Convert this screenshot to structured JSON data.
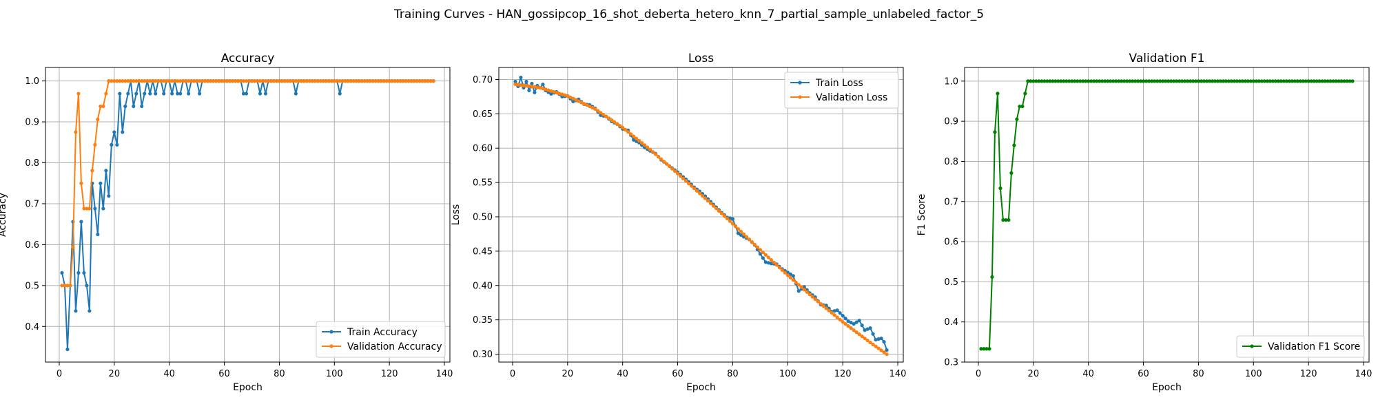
{
  "figure": {
    "suptitle": "Training Curves - HAN_gossipcop_16_shot_deberta_hetero_knn_7_partial_sample_unlabeled_factor_5"
  },
  "colors": {
    "train": "#1f77b4",
    "val": "#ff7f0e",
    "f1": "#008000",
    "grid": "#b0b0b0"
  },
  "chart_data": [
    {
      "type": "line",
      "title": "Accuracy",
      "xlabel": "Epoch",
      "ylabel": "Accuracy",
      "xlim": [
        -5,
        142
      ],
      "ylim": [
        0.313,
        1.033
      ],
      "xticks": [
        0,
        20,
        40,
        60,
        80,
        100,
        120,
        140
      ],
      "yticks": [
        0.4,
        0.5,
        0.6,
        0.7,
        0.8,
        0.9,
        1.0
      ],
      "grid": true,
      "legend": "lower-right",
      "series": [
        {
          "name": "Train Accuracy",
          "color": "#1f77b4",
          "points": [
            [
              1,
              0.531
            ],
            [
              2,
              0.5
            ],
            [
              3,
              0.344
            ],
            [
              4,
              0.5
            ],
            [
              5,
              0.656
            ],
            [
              6,
              0.438
            ],
            [
              7,
              0.531
            ],
            [
              8,
              0.656
            ],
            [
              9,
              0.531
            ],
            [
              10,
              0.5
            ],
            [
              11,
              0.438
            ],
            [
              12,
              0.75
            ],
            [
              13,
              0.688
            ],
            [
              14,
              0.625
            ],
            [
              15,
              0.75
            ],
            [
              16,
              0.688
            ],
            [
              17,
              0.781
            ],
            [
              18,
              0.719
            ],
            [
              19,
              0.844
            ],
            [
              20,
              0.875
            ],
            [
              21,
              0.844
            ],
            [
              22,
              0.969
            ],
            [
              23,
              0.875
            ],
            [
              24,
              0.938
            ],
            [
              25,
              0.969
            ],
            [
              26,
              1.0
            ],
            [
              27,
              0.938
            ],
            [
              28,
              0.969
            ],
            [
              29,
              1.0
            ],
            [
              30,
              0.938
            ],
            [
              31,
              0.969
            ],
            [
              32,
              1.0
            ],
            [
              33,
              0.969
            ],
            [
              34,
              1.0
            ],
            [
              35,
              0.969
            ],
            [
              36,
              1.0
            ],
            [
              37,
              1.0
            ],
            [
              38,
              0.969
            ],
            [
              39,
              1.0
            ],
            [
              40,
              1.0
            ],
            [
              41,
              0.969
            ],
            [
              42,
              1.0
            ],
            [
              43,
              0.969
            ],
            [
              44,
              0.969
            ],
            [
              45,
              1.0
            ],
            [
              46,
              1.0
            ],
            [
              47,
              0.969
            ],
            [
              48,
              1.0
            ],
            [
              49,
              1.0
            ],
            [
              50,
              1.0
            ],
            [
              51,
              0.969
            ],
            [
              52,
              1.0
            ],
            [
              60,
              1.0
            ],
            [
              66,
              1.0
            ],
            [
              67,
              0.969
            ],
            [
              68,
              0.969
            ],
            [
              69,
              1.0
            ],
            [
              72,
              1.0
            ],
            [
              73,
              0.969
            ],
            [
              74,
              1.0
            ],
            [
              75,
              0.969
            ],
            [
              76,
              1.0
            ],
            [
              85,
              1.0
            ],
            [
              86,
              0.969
            ],
            [
              87,
              1.0
            ],
            [
              101,
              1.0
            ],
            [
              102,
              0.969
            ],
            [
              103,
              1.0
            ],
            [
              136,
              1.0
            ]
          ]
        },
        {
          "name": "Validation Accuracy",
          "color": "#ff7f0e",
          "points": [
            [
              1,
              0.5
            ],
            [
              2,
              0.5
            ],
            [
              3,
              0.5
            ],
            [
              4,
              0.5
            ],
            [
              5,
              0.594
            ],
            [
              6,
              0.875
            ],
            [
              7,
              0.969
            ],
            [
              8,
              0.75
            ],
            [
              9,
              0.688
            ],
            [
              10,
              0.688
            ],
            [
              11,
              0.688
            ],
            [
              12,
              0.781
            ],
            [
              13,
              0.844
            ],
            [
              14,
              0.906
            ],
            [
              15,
              0.938
            ],
            [
              16,
              0.938
            ],
            [
              17,
              0.969
            ],
            [
              18,
              1.0
            ],
            [
              19,
              1.0
            ],
            [
              136,
              1.0
            ]
          ]
        }
      ]
    },
    {
      "type": "line",
      "title": "Loss",
      "xlabel": "Epoch",
      "ylabel": "Loss",
      "xlim": [
        -5,
        142
      ],
      "ylim": [
        0.2885,
        0.7175
      ],
      "xticks": [
        0,
        20,
        40,
        60,
        80,
        100,
        120,
        140
      ],
      "yticks": [
        0.3,
        0.35,
        0.4,
        0.45,
        0.5,
        0.55,
        0.6,
        0.65,
        0.7
      ],
      "grid": true,
      "legend": "top-right",
      "series": [
        {
          "name": "Train Loss",
          "color": "#1f77b4",
          "points": [
            [
              1,
              0.697
            ],
            [
              2,
              0.69
            ],
            [
              3,
              0.703
            ],
            [
              4,
              0.688
            ],
            [
              5,
              0.697
            ],
            [
              6,
              0.684
            ],
            [
              7,
              0.694
            ],
            [
              8,
              0.681
            ],
            [
              9,
              0.691
            ],
            [
              10,
              0.688
            ],
            [
              11,
              0.693
            ],
            [
              12,
              0.684
            ],
            [
              14,
              0.679
            ],
            [
              16,
              0.682
            ],
            [
              18,
              0.675
            ],
            [
              20,
              0.676
            ],
            [
              22,
              0.668
            ],
            [
              24,
              0.671
            ],
            [
              26,
              0.664
            ],
            [
              28,
              0.663
            ],
            [
              30,
              0.658
            ],
            [
              32,
              0.648
            ],
            [
              34,
              0.646
            ],
            [
              36,
              0.639
            ],
            [
              38,
              0.635
            ],
            [
              40,
              0.628
            ],
            [
              42,
              0.626
            ],
            [
              44,
              0.612
            ],
            [
              46,
              0.608
            ],
            [
              48,
              0.601
            ],
            [
              50,
              0.596
            ],
            [
              52,
              0.592
            ],
            [
              54,
              0.583
            ],
            [
              56,
              0.577
            ],
            [
              58,
              0.571
            ],
            [
              60,
              0.565
            ],
            [
              62,
              0.558
            ],
            [
              64,
              0.551
            ],
            [
              66,
              0.543
            ],
            [
              68,
              0.537
            ],
            [
              70,
              0.53
            ],
            [
              72,
              0.522
            ],
            [
              74,
              0.514
            ],
            [
              76,
              0.506
            ],
            [
              78,
              0.499
            ],
            [
              80,
              0.497
            ],
            [
              82,
              0.476
            ],
            [
              84,
              0.471
            ],
            [
              86,
              0.467
            ],
            [
              88,
              0.459
            ],
            [
              90,
              0.446
            ],
            [
              92,
              0.434
            ],
            [
              94,
              0.432
            ],
            [
              96,
              0.431
            ],
            [
              98,
              0.424
            ],
            [
              100,
              0.419
            ],
            [
              102,
              0.414
            ],
            [
              104,
              0.392
            ],
            [
              106,
              0.398
            ],
            [
              108,
              0.389
            ],
            [
              110,
              0.383
            ],
            [
              112,
              0.372
            ],
            [
              114,
              0.371
            ],
            [
              116,
              0.362
            ],
            [
              118,
              0.364
            ],
            [
              120,
              0.356
            ],
            [
              122,
              0.348
            ],
            [
              124,
              0.344
            ],
            [
              126,
              0.349
            ],
            [
              128,
              0.335
            ],
            [
              130,
              0.338
            ],
            [
              132,
              0.321
            ],
            [
              134,
              0.323
            ],
            [
              135,
              0.318
            ],
            [
              136,
              0.306
            ]
          ]
        },
        {
          "name": "Validation Loss",
          "color": "#ff7f0e",
          "points": [
            [
              1,
              0.693
            ],
            [
              10,
              0.688
            ],
            [
              20,
              0.676
            ],
            [
              30,
              0.657
            ],
            [
              40,
              0.63
            ],
            [
              50,
              0.598
            ],
            [
              60,
              0.563
            ],
            [
              70,
              0.527
            ],
            [
              80,
              0.49
            ],
            [
              90,
              0.452
            ],
            [
              100,
              0.415
            ],
            [
              110,
              0.38
            ],
            [
              120,
              0.347
            ],
            [
              130,
              0.317
            ],
            [
              136,
              0.3
            ]
          ]
        }
      ]
    },
    {
      "type": "line",
      "title": "Validation F1",
      "xlabel": "Epoch",
      "ylabel": "F1 Score",
      "xlim": [
        -5,
        142
      ],
      "ylim": [
        0.3,
        1.034
      ],
      "xticks": [
        0,
        20,
        40,
        60,
        80,
        100,
        120,
        140
      ],
      "yticks": [
        0.3,
        0.4,
        0.5,
        0.6,
        0.7,
        0.8,
        0.9,
        1.0
      ],
      "grid": true,
      "legend": "lower-right",
      "series": [
        {
          "name": "Validation F1 Score",
          "color": "#008000",
          "points": [
            [
              1,
              0.333
            ],
            [
              2,
              0.333
            ],
            [
              3,
              0.333
            ],
            [
              4,
              0.333
            ],
            [
              5,
              0.512
            ],
            [
              6,
              0.873
            ],
            [
              7,
              0.969
            ],
            [
              8,
              0.733
            ],
            [
              9,
              0.654
            ],
            [
              10,
              0.654
            ],
            [
              11,
              0.654
            ],
            [
              12,
              0.771
            ],
            [
              13,
              0.84
            ],
            [
              14,
              0.905
            ],
            [
              15,
              0.937
            ],
            [
              16,
              0.937
            ],
            [
              17,
              0.969
            ],
            [
              18,
              1.0
            ],
            [
              19,
              1.0
            ],
            [
              136,
              1.0
            ]
          ]
        }
      ]
    }
  ]
}
